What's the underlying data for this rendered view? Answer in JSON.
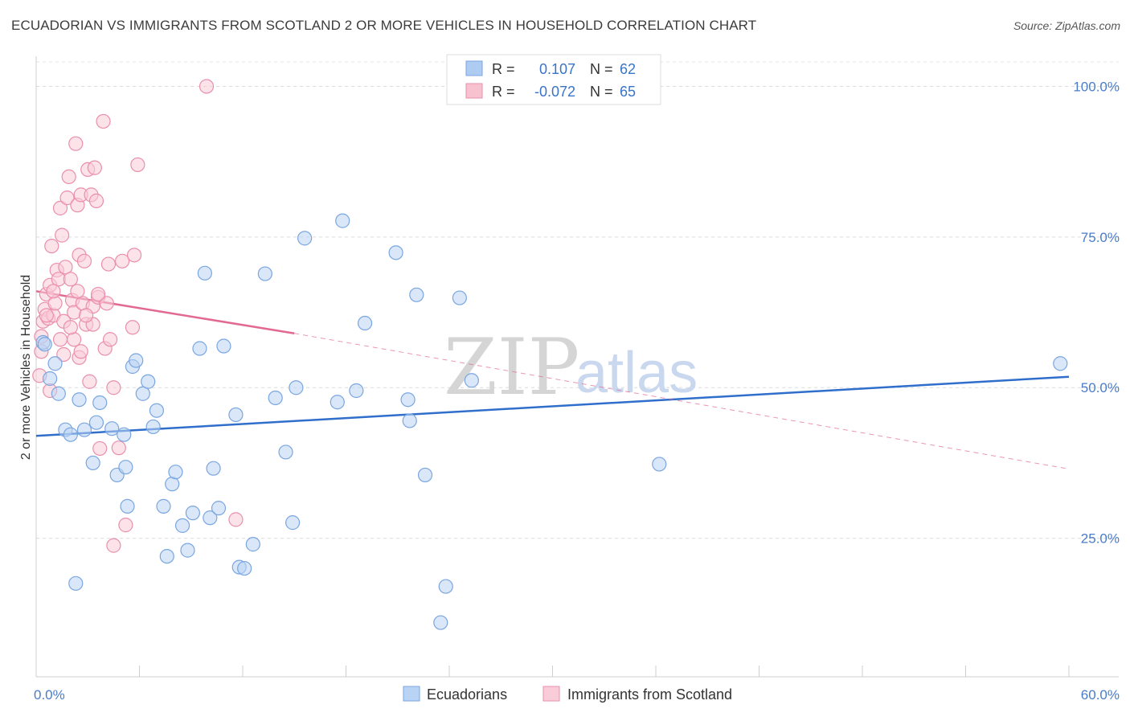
{
  "header": {
    "title": "ECUADORIAN VS IMMIGRANTS FROM SCOTLAND 2 OR MORE VEHICLES IN HOUSEHOLD CORRELATION CHART",
    "source": "Source: ZipAtlas.com"
  },
  "watermark": {
    "zip": "ZIP",
    "atlas": "atlas"
  },
  "legend": {
    "r_label": "R =",
    "n_label": "N =",
    "rows": [
      {
        "r": "0.107",
        "n": "62",
        "color": "#aecbf2",
        "stroke": "#7aa6e0",
        "text_color": "#3a74c9"
      },
      {
        "r": "-0.072",
        "n": "65",
        "color": "#f7c1d0",
        "stroke": "#ea8fab",
        "text_color": "#3a74c9"
      }
    ]
  },
  "bottom_legend": [
    {
      "label": "Ecuadorians",
      "color": "#b9d3f4",
      "stroke": "#7aa6e0"
    },
    {
      "label": "Immigrants from Scotland",
      "color": "#f9ccd9",
      "stroke": "#ea8fab"
    }
  ],
  "chart_data": {
    "type": "scatter",
    "title": "ECUADORIAN VS IMMIGRANTS FROM SCOTLAND 2 OR MORE VEHICLES IN HOUSEHOLD CORRELATION CHART",
    "xlabel": "",
    "ylabel": "2 or more Vehicles in Household",
    "xlim": [
      0,
      60
    ],
    "ylim": [
      2,
      105
    ],
    "x_tick_labels": [
      "0.0%",
      "60.0%"
    ],
    "y_ticks": [
      25,
      50,
      75,
      100
    ],
    "y_tick_labels": [
      "25.0%",
      "50.0%",
      "75.0%",
      "100.0%"
    ],
    "grid": true,
    "series": [
      {
        "name": "Ecuadorians",
        "color": "#7aa6e0",
        "fill": "#b9d3f4",
        "trend": {
          "x": [
            0,
            60
          ],
          "y": [
            42.0,
            51.8
          ],
          "color": "#2f6fcb",
          "dashed_from": null
        },
        "points": [
          [
            0.4,
            57.5
          ],
          [
            0.8,
            51.5
          ],
          [
            1.1,
            54.0
          ],
          [
            1.3,
            49.0
          ],
          [
            1.7,
            43.0
          ],
          [
            2.0,
            42.2
          ],
          [
            2.5,
            48.0
          ],
          [
            2.8,
            43.0
          ],
          [
            3.3,
            37.5
          ],
          [
            3.5,
            44.2
          ],
          [
            3.7,
            47.5
          ],
          [
            4.4,
            43.2
          ],
          [
            4.7,
            35.5
          ],
          [
            5.1,
            42.2
          ],
          [
            5.2,
            36.8
          ],
          [
            5.3,
            30.3
          ],
          [
            5.6,
            53.5
          ],
          [
            5.8,
            54.5
          ],
          [
            6.2,
            49.0
          ],
          [
            6.5,
            51.0
          ],
          [
            6.8,
            43.5
          ],
          [
            7.0,
            46.2
          ],
          [
            7.4,
            30.3
          ],
          [
            7.6,
            22.0
          ],
          [
            7.9,
            34.0
          ],
          [
            8.1,
            36.0
          ],
          [
            8.5,
            27.1
          ],
          [
            8.8,
            23.0
          ],
          [
            9.1,
            29.2
          ],
          [
            9.5,
            56.5
          ],
          [
            9.8,
            69.0
          ],
          [
            10.1,
            28.4
          ],
          [
            10.3,
            36.6
          ],
          [
            10.6,
            30.0
          ],
          [
            10.9,
            56.9
          ],
          [
            11.6,
            45.5
          ],
          [
            11.8,
            20.2
          ],
          [
            12.1,
            20.0
          ],
          [
            12.6,
            24.0
          ],
          [
            13.3,
            68.9
          ],
          [
            13.9,
            48.3
          ],
          [
            14.5,
            39.3
          ],
          [
            14.9,
            27.6
          ],
          [
            15.1,
            50.0
          ],
          [
            15.6,
            74.8
          ],
          [
            17.5,
            47.6
          ],
          [
            17.8,
            77.7
          ],
          [
            18.6,
            49.5
          ],
          [
            19.1,
            60.7
          ],
          [
            20.9,
            72.4
          ],
          [
            21.6,
            48.0
          ],
          [
            21.7,
            44.5
          ],
          [
            22.1,
            65.4
          ],
          [
            22.6,
            35.5
          ],
          [
            23.8,
            17.0
          ],
          [
            24.6,
            64.9
          ],
          [
            25.3,
            51.2
          ],
          [
            23.5,
            11.0
          ],
          [
            36.2,
            37.3
          ],
          [
            59.5,
            54.0
          ],
          [
            2.3,
            17.5
          ],
          [
            0.5,
            57.2
          ]
        ]
      },
      {
        "name": "Immigrants from Scotland",
        "color": "#ea8fab",
        "fill": "#f9ccd9",
        "trend": {
          "x": [
            0,
            15
          ],
          "y": [
            66.0,
            59.0
          ],
          "dashed_to": [
            60,
            36.5
          ],
          "color": "#e26a92"
        },
        "points": [
          [
            0.2,
            52.0
          ],
          [
            0.3,
            58.5
          ],
          [
            0.4,
            61.0
          ],
          [
            0.5,
            63.0
          ],
          [
            0.6,
            65.5
          ],
          [
            0.7,
            61.5
          ],
          [
            0.8,
            67.0
          ],
          [
            0.8,
            49.5
          ],
          [
            0.9,
            73.5
          ],
          [
            1.0,
            62.0
          ],
          [
            1.1,
            64.0
          ],
          [
            1.2,
            69.5
          ],
          [
            1.3,
            68.0
          ],
          [
            1.4,
            79.8
          ],
          [
            1.5,
            75.3
          ],
          [
            1.6,
            55.5
          ],
          [
            1.6,
            61.0
          ],
          [
            1.7,
            70.0
          ],
          [
            1.8,
            81.5
          ],
          [
            1.9,
            85.0
          ],
          [
            2.0,
            68.0
          ],
          [
            2.1,
            64.5
          ],
          [
            2.2,
            58.0
          ],
          [
            2.2,
            62.5
          ],
          [
            2.3,
            90.5
          ],
          [
            2.4,
            80.3
          ],
          [
            2.5,
            72.0
          ],
          [
            2.5,
            55.0
          ],
          [
            2.6,
            82.0
          ],
          [
            2.6,
            56.0
          ],
          [
            2.7,
            64.0
          ],
          [
            2.8,
            71.0
          ],
          [
            2.9,
            60.5
          ],
          [
            3.0,
            86.2
          ],
          [
            3.1,
            51.0
          ],
          [
            3.2,
            82.0
          ],
          [
            3.3,
            63.5
          ],
          [
            3.3,
            60.5
          ],
          [
            3.4,
            86.5
          ],
          [
            3.5,
            81.0
          ],
          [
            3.6,
            65.0
          ],
          [
            3.7,
            39.9
          ],
          [
            3.9,
            94.2
          ],
          [
            4.0,
            56.5
          ],
          [
            4.1,
            64.0
          ],
          [
            4.2,
            70.5
          ],
          [
            4.5,
            50.0
          ],
          [
            4.5,
            23.8
          ],
          [
            4.8,
            40.0
          ],
          [
            5.0,
            71.0
          ],
          [
            5.2,
            27.2
          ],
          [
            5.6,
            60.0
          ],
          [
            5.7,
            72.0
          ],
          [
            5.9,
            87.0
          ],
          [
            9.9,
            100.0
          ],
          [
            11.6,
            28.1
          ],
          [
            0.3,
            56.0
          ],
          [
            0.6,
            62.0
          ],
          [
            1.0,
            66.0
          ],
          [
            1.4,
            58.0
          ],
          [
            2.0,
            60.0
          ],
          [
            2.4,
            66.0
          ],
          [
            2.9,
            62.0
          ],
          [
            3.6,
            65.5
          ],
          [
            4.3,
            58.0
          ]
        ]
      }
    ]
  }
}
